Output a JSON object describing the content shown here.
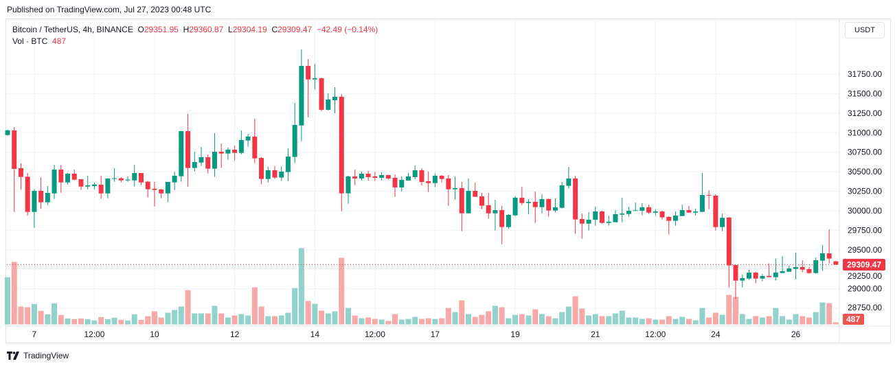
{
  "published": "Published on TradingView.com, Jul 27, 2023 00:48 UTC",
  "legend": {
    "symbol": "Bitcoin / TetherUS, 4h, BINANCE",
    "o_label": "O",
    "o": "29351.95",
    "h_label": "H",
    "h": "29360.87",
    "l_label": "L",
    "l": "29304.19",
    "c_label": "C",
    "c": "29309.47",
    "change": "−42.49 (−0.14%)",
    "vol_label": "Vol · BTC",
    "vol": "487"
  },
  "currency_button": "USDT",
  "footer_brand": "TradingView",
  "colors": {
    "up": "#089981",
    "down": "#f23645",
    "up_volume": "#92d2cc",
    "down_volume": "#f7a9a7"
  },
  "chart_data": {
    "type": "candlestick",
    "title": "",
    "xlabel": "",
    "ylabel": "",
    "ylim": [
      28600,
      31850
    ],
    "grid": true,
    "y_ticks": [
      "31750.00",
      "31500.00",
      "31250.00",
      "31000.00",
      "30750.00",
      "30500.00",
      "30250.00",
      "30000.00",
      "29750.00",
      "29500.00",
      "29250.00",
      "29000.00",
      "28750.00"
    ],
    "x_tick_labels": [
      {
        "label": "7",
        "candle": 4
      },
      {
        "label": "12:00",
        "candle": 13
      },
      {
        "label": "10",
        "candle": 22
      },
      {
        "label": "12",
        "candle": 34
      },
      {
        "label": "14",
        "candle": 46
      },
      {
        "label": "12:00",
        "candle": 55
      },
      {
        "label": "17",
        "candle": 64
      },
      {
        "label": "19",
        "candle": 76
      },
      {
        "label": "21",
        "candle": 88
      },
      {
        "label": "12:00",
        "candle": 97
      },
      {
        "label": "24",
        "candle": 106
      },
      {
        "label": "26",
        "candle": 118
      }
    ],
    "last_price": "29309.47",
    "last_volume": "487",
    "ohlc": [
      [
        30970,
        31040,
        30960,
        31030
      ],
      [
        31029,
        31073,
        29984,
        30536
      ],
      [
        30545,
        30606,
        30272,
        30433
      ],
      [
        30436,
        30483,
        29938,
        29985
      ],
      [
        29985,
        30278,
        29780,
        30255
      ],
      [
        30255,
        30431,
        30026,
        30108
      ],
      [
        30108,
        30316,
        30073,
        30228
      ],
      [
        30222,
        30589,
        30152,
        30527
      ],
      [
        30527,
        30589,
        30231,
        30363
      ],
      [
        30363,
        30483,
        30337,
        30475
      ],
      [
        30475,
        30527,
        30389,
        30398
      ],
      [
        30404,
        30404,
        30266,
        30310
      ],
      [
        30310,
        30448,
        30275,
        30325
      ],
      [
        30316,
        30360,
        30275,
        30336
      ],
      [
        30334,
        30448,
        30152,
        30222
      ],
      [
        30222,
        30418,
        30161,
        30413
      ],
      [
        30407,
        30545,
        30372,
        30416
      ],
      [
        30416,
        30431,
        30363,
        30389
      ],
      [
        30389,
        30439,
        30372,
        30398
      ],
      [
        30389,
        30589,
        30310,
        30483
      ],
      [
        30483,
        30483,
        30328,
        30363
      ],
      [
        30372,
        30381,
        30170,
        30275
      ],
      [
        30281,
        30369,
        30055,
        30266
      ],
      [
        30272,
        30281,
        30161,
        30222
      ],
      [
        30222,
        30369,
        30108,
        30369
      ],
      [
        30363,
        30501,
        30264,
        30448
      ],
      [
        30442,
        31020,
        30372,
        31020
      ],
      [
        31020,
        31240,
        30310,
        30548
      ],
      [
        30548,
        30756,
        30504,
        30624
      ],
      [
        30618,
        30818,
        30574,
        30686
      ],
      [
        30686,
        30721,
        30478,
        30539
      ],
      [
        30539,
        30994,
        30434,
        30756
      ],
      [
        30756,
        30862,
        30548,
        30733
      ],
      [
        30733,
        30809,
        30653,
        30782
      ],
      [
        30782,
        30835,
        30645,
        30741
      ],
      [
        30741,
        31029,
        30724,
        30906
      ],
      [
        30900,
        30985,
        30821,
        30950
      ],
      [
        30950,
        31178,
        30609,
        30671
      ],
      [
        30677,
        30686,
        30337,
        30407
      ],
      [
        30407,
        30563,
        30363,
        30519
      ],
      [
        30519,
        30571,
        30407,
        30425
      ],
      [
        30425,
        30571,
        30381,
        30501
      ],
      [
        30495,
        30800,
        30381,
        30694
      ],
      [
        30689,
        31381,
        30610,
        31099
      ],
      [
        31093,
        32067,
        30891,
        31856
      ],
      [
        31856,
        31944,
        31196,
        31683
      ],
      [
        31683,
        31882,
        31559,
        31697
      ],
      [
        31697,
        31706,
        31275,
        31293
      ],
      [
        31293,
        31504,
        31284,
        31425
      ],
      [
        31416,
        31583,
        31249,
        31460
      ],
      [
        31460,
        31495,
        29994,
        30223
      ],
      [
        30223,
        30449,
        30091,
        30440
      ],
      [
        30440,
        30527,
        30328,
        30413
      ],
      [
        30413,
        30501,
        30387,
        30475
      ],
      [
        30475,
        30510,
        30387,
        30431
      ],
      [
        30440,
        30501,
        30381,
        30422
      ],
      [
        30422,
        30492,
        30387,
        30457
      ],
      [
        30457,
        30457,
        30398,
        30413
      ],
      [
        30422,
        30466,
        30178,
        30299
      ],
      [
        30299,
        30440,
        30246,
        30396
      ],
      [
        30387,
        30483,
        30387,
        30440
      ],
      [
        30431,
        30580,
        30404,
        30519
      ],
      [
        30519,
        30545,
        30325,
        30369
      ],
      [
        30378,
        30501,
        30240,
        30354
      ],
      [
        30354,
        30474,
        30302,
        30448
      ],
      [
        30448,
        30457,
        30363,
        30407
      ],
      [
        30413,
        30457,
        30064,
        30275
      ],
      [
        30275,
        30439,
        30143,
        30290
      ],
      [
        30290,
        30369,
        29739,
        29967
      ],
      [
        29967,
        30413,
        29967,
        30255
      ],
      [
        30255,
        30360,
        30178,
        30178
      ],
      [
        30184,
        30228,
        30020,
        30064
      ],
      [
        30070,
        30228,
        29897,
        29967
      ],
      [
        29967,
        30140,
        29747,
        30008
      ],
      [
        30008,
        30061,
        29571,
        29791
      ],
      [
        29791,
        29956,
        29765,
        29947
      ],
      [
        29941,
        30184,
        29932,
        30167
      ],
      [
        30167,
        30307,
        30073,
        30099
      ],
      [
        30099,
        30149,
        29958,
        30114
      ],
      [
        30114,
        30246,
        29844,
        30046
      ],
      [
        30046,
        30211,
        29967,
        30149
      ],
      [
        30149,
        30158,
        29923,
        30003
      ],
      [
        30003,
        30158,
        29976,
        30044
      ],
      [
        30038,
        30369,
        30029,
        30325
      ],
      [
        30319,
        30562,
        30284,
        30413
      ],
      [
        30413,
        30448,
        29703,
        29888
      ],
      [
        29894,
        29964,
        29642,
        29835
      ],
      [
        29835,
        29982,
        29747,
        29885
      ],
      [
        29885,
        30052,
        29809,
        29991
      ],
      [
        29991,
        30000,
        29835,
        29844
      ],
      [
        29844,
        29938,
        29809,
        29859
      ],
      [
        29853,
        30008,
        29853,
        29956
      ],
      [
        29950,
        30167,
        29853,
        29964
      ],
      [
        29958,
        30052,
        29923,
        30000
      ],
      [
        29999,
        30105,
        29999,
        30006
      ],
      [
        30000,
        30096,
        29941,
        30044
      ],
      [
        30044,
        30079,
        29958,
        29976
      ],
      [
        29976,
        30020,
        29941,
        29991
      ],
      [
        29991,
        30000,
        29888,
        29915
      ],
      [
        29921,
        29929,
        29695,
        29871
      ],
      [
        29871,
        29991,
        29809,
        29938
      ],
      [
        29932,
        30079,
        29932,
        30008
      ],
      [
        30008,
        30061,
        29976,
        29976
      ],
      [
        29976,
        30026,
        29941,
        29991
      ],
      [
        29985,
        30483,
        29985,
        30202
      ],
      [
        30202,
        30263,
        30020,
        30193
      ],
      [
        30193,
        30211,
        29747,
        29791
      ],
      [
        29791,
        29964,
        29738,
        29909
      ],
      [
        29912,
        29920,
        29017,
        29299
      ],
      [
        29305,
        29305,
        28868,
        29105
      ],
      [
        29105,
        29181,
        29017,
        29137
      ],
      [
        29131,
        29243,
        29114,
        29207
      ],
      [
        29207,
        29217,
        29070,
        29131
      ],
      [
        29131,
        29190,
        29096,
        29164
      ],
      [
        29164,
        29325,
        29149,
        29149
      ],
      [
        29149,
        29384,
        29105,
        29208
      ],
      [
        29202,
        29419,
        29202,
        29225
      ],
      [
        29219,
        29296,
        29219,
        29260
      ],
      [
        29255,
        29463,
        29123,
        29278
      ],
      [
        29278,
        29366,
        29211,
        29246
      ],
      [
        29252,
        29278,
        29193,
        29202
      ],
      [
        29202,
        29401,
        29193,
        29366
      ],
      [
        29360,
        29560,
        29228,
        29454
      ],
      [
        29454,
        29762,
        29325,
        29387
      ],
      [
        29351.95,
        29360.87,
        29304.19,
        29309.47
      ]
    ],
    "volume": [
      10990,
      14560,
      4160,
      4000,
      4750,
      3150,
      2350,
      4910,
      2190,
      1390,
      1230,
      1390,
      1230,
      910,
      1710,
      1230,
      1550,
      1070,
      910,
      2350,
      1070,
      1920,
      3040,
      1600,
      2720,
      3360,
      4160,
      8000,
      2560,
      2560,
      2560,
      4320,
      2560,
      1600,
      2080,
      2400,
      2080,
      8640,
      4160,
      1920,
      1920,
      2080,
      2720,
      8480,
      17760,
      5440,
      4800,
      3200,
      2560,
      3040,
      15520,
      3840,
      2080,
      1440,
      1600,
      1280,
      1120,
      800,
      2400,
      1120,
      1280,
      1760,
      1280,
      1440,
      1280,
      1440,
      3840,
      2880,
      5600,
      2400,
      1760,
      2240,
      3040,
      4320,
      4000,
      1440,
      2240,
      2400,
      2080,
      3520,
      2400,
      1920,
      1440,
      2880,
      4160,
      6560,
      3680,
      2080,
      2400,
      1920,
      1920,
      2560,
      3200,
      1600,
      1600,
      1280,
      1440,
      1120,
      1120,
      1920,
      1280,
      1760,
      1280,
      960,
      3840,
      1600,
      2720,
      2240,
      6880,
      6400,
      2400,
      1280,
      1920,
      1600,
      1920,
      3840,
      1920,
      1120,
      2400,
      1920,
      1600,
      2880,
      5120,
      4960,
      487
    ]
  }
}
